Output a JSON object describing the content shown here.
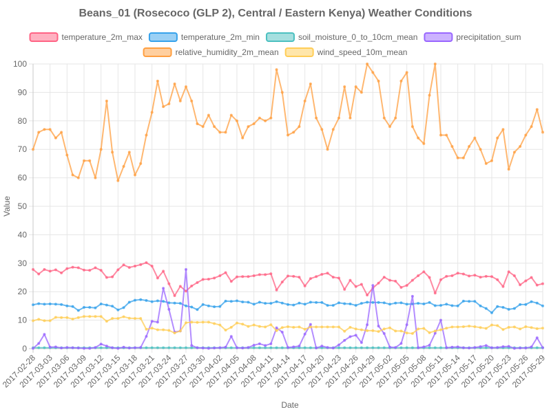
{
  "chart_data": {
    "type": "line",
    "title": "Beans_01 (Rosecoco (GLP 2), Central / Eastern Kenya) Weather Conditions",
    "xlabel": "Date",
    "ylabel": "Value",
    "ylim": [
      0,
      100
    ],
    "yticks": [
      0,
      10,
      20,
      30,
      40,
      50,
      60,
      70,
      80,
      90,
      100
    ],
    "grid": true,
    "legend_position": "top",
    "x_tick_labels": [
      "2017-02-28",
      "2017-03-03",
      "2017-03-06",
      "2017-03-09",
      "2017-03-12",
      "2017-03-15",
      "2017-03-18",
      "2017-03-21",
      "2017-03-24",
      "2017-03-27",
      "2017-03-30",
      "2017-04-02",
      "2017-04-05",
      "2017-04-08",
      "2017-04-11",
      "2017-04-14",
      "2017-04-17",
      "2017-04-20",
      "2017-04-23",
      "2017-04-26",
      "2017-04-29",
      "2017-05-02",
      "2017-05-05",
      "2017-05-08",
      "2017-05-11",
      "2017-05-14",
      "2017-05-17",
      "2017-05-20",
      "2017-05-23",
      "2017-05-26",
      "2017-05-29"
    ],
    "x": [
      "2017-02-28",
      "2017-03-01",
      "2017-03-02",
      "2017-03-03",
      "2017-03-04",
      "2017-03-05",
      "2017-03-06",
      "2017-03-07",
      "2017-03-08",
      "2017-03-09",
      "2017-03-10",
      "2017-03-11",
      "2017-03-12",
      "2017-03-13",
      "2017-03-14",
      "2017-03-15",
      "2017-03-16",
      "2017-03-17",
      "2017-03-18",
      "2017-03-19",
      "2017-03-20",
      "2017-03-21",
      "2017-03-22",
      "2017-03-23",
      "2017-03-24",
      "2017-03-25",
      "2017-03-26",
      "2017-03-27",
      "2017-03-28",
      "2017-03-29",
      "2017-03-30",
      "2017-03-31",
      "2017-04-01",
      "2017-04-02",
      "2017-04-03",
      "2017-04-04",
      "2017-04-05",
      "2017-04-06",
      "2017-04-07",
      "2017-04-08",
      "2017-04-09",
      "2017-04-10",
      "2017-04-11",
      "2017-04-12",
      "2017-04-13",
      "2017-04-14",
      "2017-04-15",
      "2017-04-16",
      "2017-04-17",
      "2017-04-18",
      "2017-04-19",
      "2017-04-20",
      "2017-04-21",
      "2017-04-22",
      "2017-04-23",
      "2017-04-24",
      "2017-04-25",
      "2017-04-26",
      "2017-04-27",
      "2017-04-28",
      "2017-04-29",
      "2017-04-30",
      "2017-05-01",
      "2017-05-02",
      "2017-05-03",
      "2017-05-04",
      "2017-05-05",
      "2017-05-06",
      "2017-05-07",
      "2017-05-08",
      "2017-05-09",
      "2017-05-10",
      "2017-05-11",
      "2017-05-12",
      "2017-05-13",
      "2017-05-14",
      "2017-05-15",
      "2017-05-16",
      "2017-05-17",
      "2017-05-18",
      "2017-05-19",
      "2017-05-20",
      "2017-05-21",
      "2017-05-22",
      "2017-05-23",
      "2017-05-24",
      "2017-05-25",
      "2017-05-26",
      "2017-05-27",
      "2017-05-28",
      "2017-05-29"
    ],
    "series": [
      {
        "name": "temperature_2m_max",
        "color": "#ff6384",
        "fill": "#ffb1c1",
        "values": [
          27.8,
          26.2,
          27.8,
          27.2,
          27.7,
          26.6,
          28.1,
          28.6,
          28.4,
          27.6,
          27.5,
          28.4,
          27.5,
          25,
          25.2,
          27.7,
          29.4,
          28.5,
          29,
          29.5,
          30.2,
          29,
          24.8,
          27.2,
          22.8,
          18.6,
          21.9,
          20.2,
          22,
          23.2,
          24.3,
          24.4,
          24.8,
          25.6,
          26.7,
          23.6,
          25.2,
          25.3,
          25.3,
          25.6,
          26,
          26,
          26.3,
          20.6,
          23.4,
          25.5,
          25.4,
          25.1,
          22,
          24.6,
          25.3,
          26.1,
          26.5,
          25.1,
          24.8,
          20.8,
          24,
          21.8,
          22.6,
          18.8,
          21.3,
          23,
          25.1,
          24,
          23.7,
          21.5,
          22.2,
          24,
          25.6,
          27,
          25,
          19.5,
          24.2,
          25.4,
          25.6,
          26.5,
          26.2,
          25.5,
          25.8,
          25.1,
          25.4,
          25.3,
          24.2,
          21.8,
          27,
          25.6,
          22.4,
          23.8,
          25,
          22.3,
          22.8
        ]
      },
      {
        "name": "temperature_2m_min",
        "color": "#36a2eb",
        "fill": "#9ad0f5",
        "values": [
          15.4,
          15.8,
          15.6,
          15.7,
          15.6,
          15.5,
          15,
          14.8,
          13.4,
          14.5,
          14.5,
          14.3,
          15.7,
          15.3,
          14.9,
          13.6,
          14.4,
          16.3,
          17,
          17.2,
          16.9,
          16.5,
          16.8,
          16.6,
          16.1,
          16,
          15.9,
          15,
          14.6,
          13.7,
          15.5,
          15,
          14.7,
          14.8,
          16.7,
          16.6,
          16.8,
          16.4,
          16.3,
          15.6,
          16.3,
          15.9,
          15.9,
          16.5,
          16,
          15.5,
          15.3,
          16,
          15.6,
          16.3,
          16.2,
          16.2,
          15.2,
          15.2,
          16.1,
          15.8,
          15.7,
          15.2,
          15.9,
          16.3,
          16.2,
          16.2,
          16.1,
          15.6,
          16,
          16.1,
          15.6,
          15.7,
          15.9,
          15.7,
          16.2,
          15.1,
          15.2,
          15.6,
          15.1,
          15,
          16.7,
          16.6,
          16.6,
          15,
          14.1,
          12.6,
          14.8,
          14.5,
          13.8,
          14.1,
          15.5,
          15.5,
          16.5,
          16,
          15
        ]
      },
      {
        "name": "soil_moisture_0_to_10cm_mean",
        "color": "#4bc0c0",
        "fill": "#a5dfdf",
        "values": [
          0.3,
          0.3,
          0.3,
          0.3,
          0.3,
          0.3,
          0.3,
          0.3,
          0.3,
          0.3,
          0.3,
          0.3,
          0.3,
          0.3,
          0.3,
          0.3,
          0.3,
          0.3,
          0.3,
          0.3,
          0.3,
          0.3,
          0.3,
          0.3,
          0.3,
          0.3,
          0.3,
          0.3,
          0.3,
          0.3,
          0.3,
          0.3,
          0.3,
          0.3,
          0.3,
          0.3,
          0.3,
          0.3,
          0.3,
          0.3,
          0.3,
          0.3,
          0.3,
          0.3,
          0.3,
          0.3,
          0.3,
          0.3,
          0.3,
          0.3,
          0.3,
          0.3,
          0.3,
          0.3,
          0.3,
          0.3,
          0.3,
          0.3,
          0.3,
          0.3,
          0.3,
          0.3,
          0.3,
          0.3,
          0.3,
          0.3,
          0.3,
          0.3,
          0.3,
          0.3,
          0.3,
          0.3,
          0.3,
          0.3,
          0.3,
          0.3,
          0.3,
          0.3,
          0.3,
          0.3,
          0.3,
          0.3,
          0.3,
          0.3,
          0.3,
          0.3,
          0.3,
          0.3,
          0.3,
          0.3,
          0.3
        ]
      },
      {
        "name": "precipitation_sum",
        "color": "#9966ff",
        "fill": "#ccb2ff",
        "values": [
          0.1,
          1.8,
          5,
          0.5,
          0.6,
          0.2,
          0.4,
          0.3,
          0.2,
          0.1,
          0.1,
          0.4,
          1.6,
          0.9,
          0.3,
          0.1,
          0.5,
          0.2,
          0.3,
          0.4,
          4.3,
          9.6,
          9.3,
          21.2,
          13.8,
          5.8,
          6.2,
          27.8,
          1.1,
          0.3,
          0.2,
          0.1,
          0.2,
          0.3,
          0.5,
          4.3,
          0.3,
          0.2,
          0.4,
          1.2,
          1.7,
          1.1,
          1.7,
          7.3,
          5.8,
          0.4,
          0.6,
          0.9,
          5.1,
          8.5,
          0.2,
          0.9,
          0.4,
          0.2,
          1.3,
          2.9,
          4.2,
          4.7,
          2.1,
          8.4,
          22.2,
          7.9,
          5.3,
          0.5,
          0.4,
          1.8,
          8.4,
          18.4,
          0.3,
          0.6,
          1.2,
          5.4,
          10,
          0.3,
          0.5,
          0.6,
          0.3,
          0.2,
          0.4,
          0.7,
          1.1,
          0.3,
          0.4,
          0.7,
          0.8,
          0.1,
          0.2,
          0.2,
          0.6,
          3.8,
          0.3
        ]
      },
      {
        "name": "relative_humidity_2m_mean",
        "color": "#ff9f40",
        "fill": "#ffcf9f",
        "values": [
          70,
          76,
          77,
          77,
          74,
          76,
          68,
          61,
          60,
          66,
          66,
          60,
          70,
          87,
          69,
          59,
          64,
          69,
          61,
          65,
          75,
          83,
          94,
          85,
          86,
          93,
          87,
          92,
          87,
          79,
          78,
          82,
          78,
          76,
          76,
          82,
          80,
          74,
          78,
          79,
          81,
          80,
          81,
          98,
          90,
          75,
          76,
          78,
          87,
          93,
          81,
          77,
          70,
          77,
          81,
          92,
          81,
          92,
          90,
          100,
          97,
          94,
          81,
          78,
          81,
          94,
          97,
          78,
          74,
          72,
          89,
          100,
          75,
          75,
          71,
          67,
          67,
          71,
          74,
          70,
          65,
          66,
          74,
          77,
          63,
          69,
          71,
          75,
          78,
          84,
          76
        ]
      },
      {
        "name": "wind_speed_10m_mean",
        "color": "#ffcd56",
        "fill": "#ffe6aa",
        "values": [
          9.8,
          10.3,
          9.8,
          9.8,
          11,
          10.9,
          10.9,
          10.4,
          10.9,
          11.3,
          11.3,
          11.3,
          11.3,
          9.6,
          10.6,
          10.6,
          11.2,
          10.7,
          10.6,
          10.6,
          6.8,
          7.2,
          6.6,
          6.6,
          6.4,
          5.5,
          6.2,
          9.1,
          9.3,
          9.2,
          9.3,
          9.3,
          8.8,
          8.3,
          6.5,
          7.5,
          9,
          8.6,
          7.8,
          8.3,
          7.8,
          7.6,
          8.4,
          6.3,
          7.4,
          7.7,
          7.5,
          7.6,
          6.8,
          7.6,
          7.6,
          7.6,
          7.6,
          7.6,
          7.6,
          6.1,
          7.5,
          6.9,
          6.6,
          6.3,
          6.3,
          6,
          6.9,
          7.3,
          6.2,
          6.2,
          5.5,
          5.3,
          6.9,
          7.1,
          5.6,
          6.2,
          6.6,
          7.2,
          7.6,
          7.6,
          7.7,
          7.9,
          7.7,
          7.4,
          7.1,
          8.3,
          8.1,
          6.7,
          7.5,
          7.6,
          6.9,
          7.7,
          7.4,
          7,
          7.2
        ]
      }
    ]
  }
}
